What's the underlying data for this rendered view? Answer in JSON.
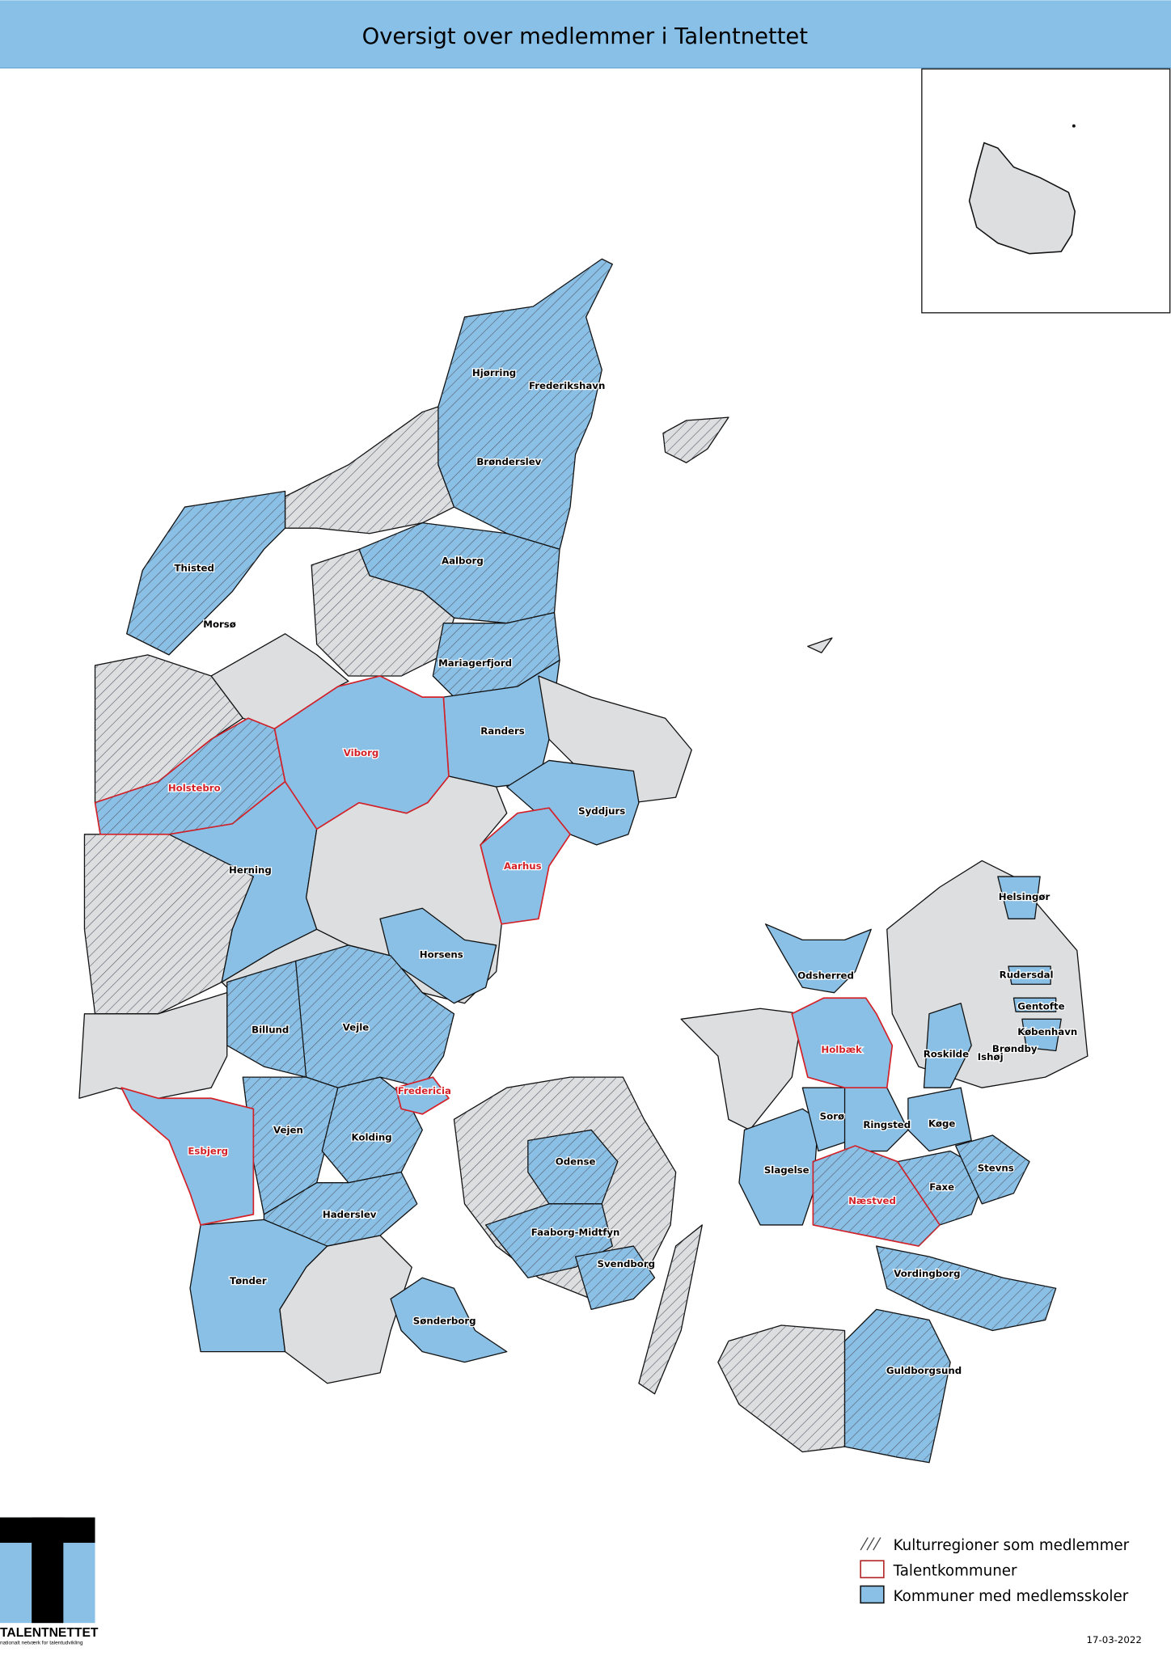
{
  "header": {
    "title": "Oversigt over medlemmer i Talentnettet"
  },
  "colors": {
    "header_bg": "#88c0e8",
    "member": "#8bc0e6",
    "other": "#dcdee0",
    "talent_outline": "#d42027",
    "hatch": "#555a66",
    "border": "#111111"
  },
  "legend": {
    "items": [
      {
        "label": "Kulturregioner som medlemmer",
        "symbol": "hatch"
      },
      {
        "label": "Talentkommuner",
        "symbol": "red-outline"
      },
      {
        "label": "Kommuner med medlemsskoler",
        "symbol": "blue-fill"
      }
    ]
  },
  "logo": {
    "name": "TALENTNETTET",
    "tagline": "nationalt netværk for talentudvikling"
  },
  "date": "17-03-2022",
  "municipalities": [
    {
      "name": "Hjørring",
      "talent": false
    },
    {
      "name": "Frederikshavn",
      "talent": false
    },
    {
      "name": "Brønderslev",
      "talent": false
    },
    {
      "name": "Thisted",
      "talent": false
    },
    {
      "name": "Aalborg",
      "talent": false
    },
    {
      "name": "Morsø",
      "talent": false
    },
    {
      "name": "Mariagerfjord",
      "talent": false
    },
    {
      "name": "Randers",
      "talent": false
    },
    {
      "name": "Viborg",
      "talent": true
    },
    {
      "name": "Holstebro",
      "talent": true
    },
    {
      "name": "Syddjurs",
      "talent": false
    },
    {
      "name": "Aarhus",
      "talent": true
    },
    {
      "name": "Herning",
      "talent": false
    },
    {
      "name": "Horsens",
      "talent": false
    },
    {
      "name": "Billund",
      "talent": false
    },
    {
      "name": "Vejle",
      "talent": false
    },
    {
      "name": "Fredericia",
      "talent": true
    },
    {
      "name": "Vejen",
      "talent": false
    },
    {
      "name": "Kolding",
      "talent": false
    },
    {
      "name": "Esbjerg",
      "talent": true
    },
    {
      "name": "Haderslev",
      "talent": false
    },
    {
      "name": "Tønder",
      "talent": false
    },
    {
      "name": "Sønderborg",
      "talent": false
    },
    {
      "name": "Odense",
      "talent": false
    },
    {
      "name": "Faaborg-Midtfyn",
      "talent": false
    },
    {
      "name": "Svendborg",
      "talent": false
    },
    {
      "name": "Helsingør",
      "talent": false
    },
    {
      "name": "Rudersdal",
      "talent": false
    },
    {
      "name": "Gentofte",
      "talent": false
    },
    {
      "name": "København",
      "talent": false
    },
    {
      "name": "Brøndby",
      "talent": false
    },
    {
      "name": "Ishøj",
      "talent": false
    },
    {
      "name": "Roskilde",
      "talent": false
    },
    {
      "name": "Odsherred",
      "talent": false
    },
    {
      "name": "Holbæk",
      "talent": true
    },
    {
      "name": "Sorø",
      "talent": false
    },
    {
      "name": "Ringsted",
      "talent": false
    },
    {
      "name": "Køge",
      "talent": false
    },
    {
      "name": "Slagelse",
      "talent": false
    },
    {
      "name": "Næstved",
      "talent": true
    },
    {
      "name": "Faxe",
      "talent": false
    },
    {
      "name": "Stevns",
      "talent": false
    },
    {
      "name": "Vordingborg",
      "talent": false
    },
    {
      "name": "Guldborgsund",
      "talent": false
    }
  ]
}
